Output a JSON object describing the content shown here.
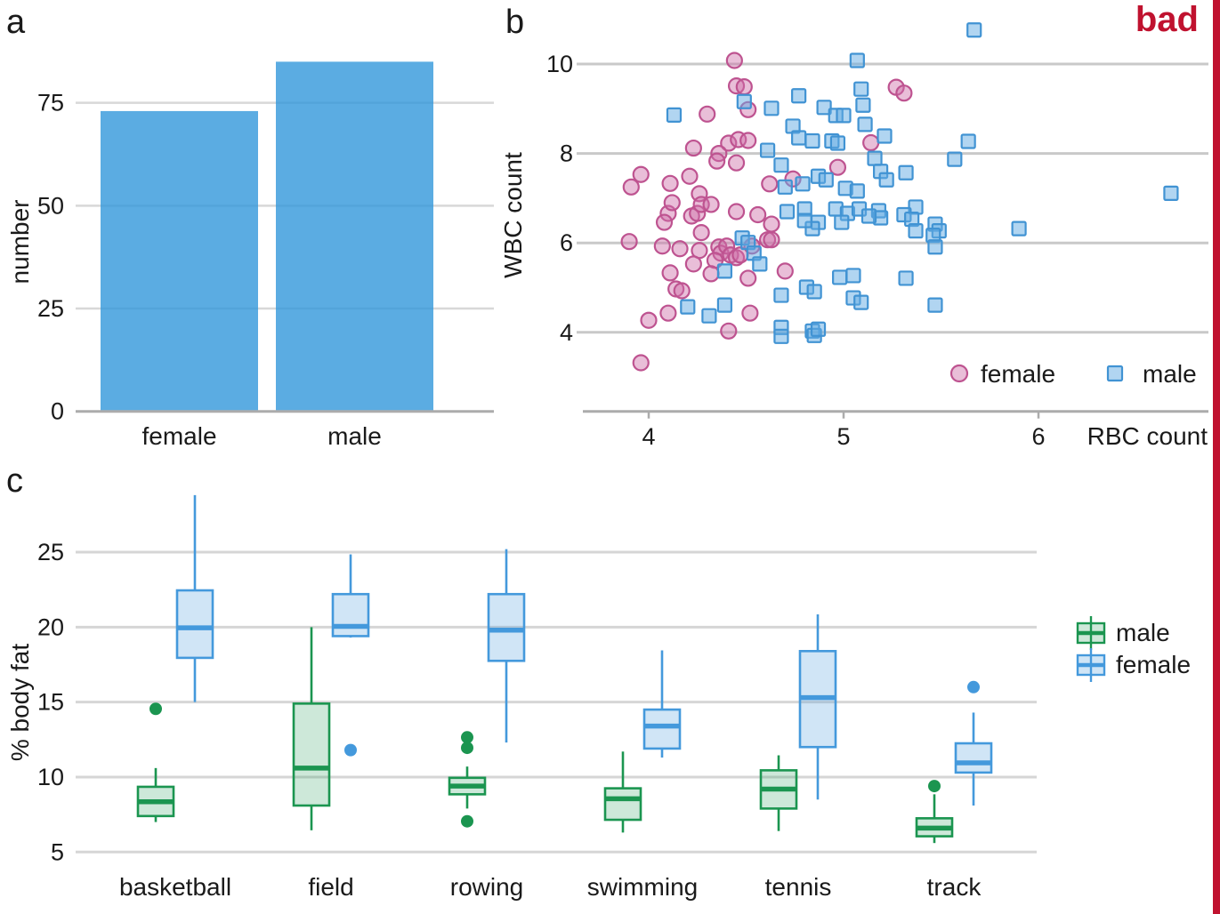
{
  "figure": {
    "panel_a_letter": "a",
    "panel_b_letter": "b",
    "panel_c_letter": "c",
    "annotation": {
      "label": "bad",
      "color": "#C0122F"
    }
  },
  "chart_data": [
    {
      "id": "a",
      "type": "bar",
      "categories": [
        "female",
        "male"
      ],
      "values": [
        73,
        85
      ],
      "ylabel": "number",
      "yticks": [
        0,
        25,
        50,
        75
      ],
      "ylim": [
        0,
        90
      ],
      "grid": true,
      "bar_color": "rgba(50,151,219,0.8)",
      "gridline_color": "#D8D8D8",
      "axis_color": "#ACACAC"
    },
    {
      "id": "b",
      "type": "scatter",
      "xlabel": "RBC count",
      "ylabel": "WBC count",
      "xticks": [
        4,
        5,
        6
      ],
      "yticks": [
        4,
        6,
        8,
        10
      ],
      "xlim": [
        3.66,
        6.9
      ],
      "ylim": [
        2.3,
        10.9
      ],
      "grid": true,
      "gridline_color": "#C9C9C9",
      "axis_color": "#ACACAC",
      "legend_position": "bottom-right-inside",
      "legend": [
        {
          "label": "female",
          "marker": "circle",
          "stroke": "#BE5390",
          "fill": "rgba(206,111,168,0.45)"
        },
        {
          "label": "male",
          "marker": "square",
          "stroke": "#4193D3",
          "fill": "rgba(100,171,228,0.5)"
        }
      ],
      "series": [
        {
          "name": "female",
          "marker": "circle",
          "stroke": "#BE5390",
          "fill": "rgba(206,111,168,0.45)",
          "points": [
            [
              4.44,
              10.08
            ],
            [
              4.45,
              9.51
            ],
            [
              4.49,
              9.49
            ],
            [
              5.27,
              9.48
            ],
            [
              5.31,
              9.35
            ],
            [
              4.51,
              8.98
            ],
            [
              4.3,
              8.88
            ],
            [
              4.23,
              8.12
            ],
            [
              4.41,
              8.23
            ],
            [
              4.46,
              8.31
            ],
            [
              4.51,
              8.29
            ],
            [
              5.14,
              8.24
            ],
            [
              4.36,
              8.0
            ],
            [
              4.35,
              7.83
            ],
            [
              4.45,
              7.79
            ],
            [
              3.96,
              7.53
            ],
            [
              3.91,
              7.25
            ],
            [
              4.11,
              7.33
            ],
            [
              4.21,
              7.49
            ],
            [
              4.62,
              7.32
            ],
            [
              4.26,
              7.1
            ],
            [
              4.74,
              7.43
            ],
            [
              4.97,
              7.69
            ],
            [
              4.1,
              6.66
            ],
            [
              4.08,
              6.46
            ],
            [
              4.22,
              6.6
            ],
            [
              4.25,
              6.66
            ],
            [
              4.12,
              6.9
            ],
            [
              4.27,
              6.86
            ],
            [
              4.32,
              6.86
            ],
            [
              4.45,
              6.7
            ],
            [
              4.56,
              6.63
            ],
            [
              4.27,
              6.23
            ],
            [
              3.9,
              6.03
            ],
            [
              4.07,
              5.93
            ],
            [
              4.16,
              5.87
            ],
            [
              4.26,
              5.83
            ],
            [
              4.36,
              5.91
            ],
            [
              4.37,
              5.77
            ],
            [
              4.4,
              5.93
            ],
            [
              4.42,
              5.73
            ],
            [
              4.45,
              5.67
            ],
            [
              4.47,
              5.73
            ],
            [
              4.53,
              5.93
            ],
            [
              4.61,
              6.07
            ],
            [
              4.63,
              6.42
            ],
            [
              4.34,
              5.61
            ],
            [
              4.32,
              5.31
            ],
            [
              4.11,
              5.33
            ],
            [
              4.14,
              4.97
            ],
            [
              4.17,
              4.93
            ],
            [
              4.23,
              5.53
            ],
            [
              4.51,
              5.21
            ],
            [
              4.63,
              6.07
            ],
            [
              4.7,
              5.37
            ],
            [
              4.1,
              4.43
            ],
            [
              4.0,
              4.27
            ],
            [
              4.52,
              4.43
            ],
            [
              4.41,
              4.03
            ],
            [
              3.96,
              3.32
            ]
          ]
        },
        {
          "name": "male",
          "marker": "square",
          "stroke": "#4193D3",
          "fill": "rgba(100,171,228,0.5)",
          "points": [
            [
              5.67,
              10.76
            ],
            [
              5.07,
              10.08
            ],
            [
              5.09,
              9.44
            ],
            [
              5.1,
              9.08
            ],
            [
              4.49,
              9.16
            ],
            [
              4.63,
              9.01
            ],
            [
              4.13,
              8.86
            ],
            [
              4.77,
              9.29
            ],
            [
              4.9,
              9.03
            ],
            [
              4.96,
              8.85
            ],
            [
              5.0,
              8.85
            ],
            [
              4.61,
              8.07
            ],
            [
              4.68,
              7.74
            ],
            [
              4.74,
              8.61
            ],
            [
              4.77,
              8.35
            ],
            [
              4.84,
              8.28
            ],
            [
              4.94,
              8.28
            ],
            [
              4.97,
              8.23
            ],
            [
              5.21,
              8.39
            ],
            [
              5.11,
              8.65
            ],
            [
              5.16,
              7.89
            ],
            [
              5.64,
              8.27
            ],
            [
              5.57,
              7.87
            ],
            [
              5.32,
              7.57
            ],
            [
              4.7,
              7.25
            ],
            [
              4.79,
              7.32
            ],
            [
              4.87,
              7.49
            ],
            [
              4.91,
              7.41
            ],
            [
              5.01,
              7.22
            ],
            [
              5.07,
              7.16
            ],
            [
              5.19,
              7.6
            ],
            [
              5.22,
              7.41
            ],
            [
              6.68,
              7.11
            ],
            [
              4.71,
              6.7
            ],
            [
              4.8,
              6.76
            ],
            [
              4.87,
              6.46
            ],
            [
              4.84,
              6.32
            ],
            [
              4.8,
              6.5
            ],
            [
              4.96,
              6.76
            ],
            [
              5.02,
              6.66
            ],
            [
              4.99,
              6.46
            ],
            [
              5.08,
              6.76
            ],
            [
              5.18,
              6.72
            ],
            [
              5.19,
              6.56
            ],
            [
              5.13,
              6.6
            ],
            [
              4.48,
              6.11
            ],
            [
              4.51,
              6.01
            ],
            [
              4.54,
              5.77
            ],
            [
              4.57,
              5.53
            ],
            [
              4.39,
              5.37
            ],
            [
              4.68,
              4.83
            ],
            [
              4.81,
              5.01
            ],
            [
              4.85,
              4.91
            ],
            [
              5.05,
              5.27
            ],
            [
              4.98,
              5.23
            ],
            [
              5.05,
              4.77
            ],
            [
              5.09,
              4.67
            ],
            [
              4.2,
              4.57
            ],
            [
              4.31,
              4.37
            ],
            [
              4.39,
              4.61
            ],
            [
              4.68,
              4.11
            ],
            [
              4.68,
              3.91
            ],
            [
              4.84,
              4.03
            ],
            [
              4.85,
              3.93
            ],
            [
              4.87,
              4.07
            ],
            [
              5.37,
              6.8
            ],
            [
              5.31,
              6.63
            ],
            [
              5.35,
              6.53
            ],
            [
              5.37,
              6.27
            ],
            [
              5.47,
              6.42
            ],
            [
              5.49,
              6.27
            ],
            [
              5.46,
              6.17
            ],
            [
              5.47,
              5.91
            ],
            [
              5.9,
              6.32
            ],
            [
              5.32,
              5.21
            ],
            [
              5.47,
              4.61
            ]
          ]
        }
      ]
    },
    {
      "id": "c",
      "type": "boxplot",
      "categories": [
        "basketball",
        "field",
        "rowing",
        "swimming",
        "tennis",
        "track"
      ],
      "ylabel": "% body fat",
      "yticks": [
        5,
        10,
        15,
        20,
        25
      ],
      "ylim": [
        4,
        29.5
      ],
      "grid": true,
      "gridline_color": "#D6D6D6",
      "legend": [
        {
          "label": "male",
          "stroke": "#1B9550",
          "fill": "rgba(27,149,80,0.22)"
        },
        {
          "label": "female",
          "stroke": "#4499DC",
          "fill": "rgba(68,153,220,0.25)"
        }
      ],
      "series": [
        {
          "name": "male",
          "stroke": "#1B9550",
          "fill": "rgba(27,149,80,0.22)",
          "boxes": [
            {
              "category": "basketball",
              "whisker_low": 7.0,
              "q1": 7.4,
              "median": 8.35,
              "q3": 9.35,
              "whisker_high": 10.6,
              "outliers": [
                14.55
              ]
            },
            {
              "category": "field",
              "whisker_low": 6.45,
              "q1": 8.1,
              "median": 10.6,
              "q3": 14.9,
              "whisker_high": 20.0,
              "outliers": []
            },
            {
              "category": "rowing",
              "whisker_low": 7.9,
              "q1": 8.85,
              "median": 9.4,
              "q3": 9.95,
              "whisker_high": 10.7,
              "outliers": [
                12.65,
                11.95,
                7.05
              ]
            },
            {
              "category": "swimming",
              "whisker_low": 6.3,
              "q1": 7.15,
              "median": 8.55,
              "q3": 9.25,
              "whisker_high": 11.7,
              "outliers": []
            },
            {
              "category": "tennis",
              "whisker_low": 6.4,
              "q1": 7.9,
              "median": 9.2,
              "q3": 10.45,
              "whisker_high": 11.45,
              "outliers": []
            },
            {
              "category": "track",
              "whisker_low": 5.6,
              "q1": 6.05,
              "median": 6.6,
              "q3": 7.25,
              "whisker_high": 8.85,
              "outliers": [
                9.4
              ]
            }
          ]
        },
        {
          "name": "female",
          "stroke": "#4499DC",
          "fill": "rgba(68,153,220,0.25)",
          "boxes": [
            {
              "category": "basketball",
              "whisker_low": 15.0,
              "q1": 17.95,
              "median": 19.95,
              "q3": 22.45,
              "whisker_high": 28.8,
              "outliers": []
            },
            {
              "category": "field",
              "whisker_low": 19.3,
              "q1": 19.4,
              "median": 20.05,
              "q3": 22.2,
              "whisker_high": 24.85,
              "outliers": [
                11.8
              ]
            },
            {
              "category": "rowing",
              "whisker_low": 12.3,
              "q1": 17.75,
              "median": 19.8,
              "q3": 22.2,
              "whisker_high": 25.2,
              "outliers": []
            },
            {
              "category": "swimming",
              "whisker_low": 11.3,
              "q1": 11.9,
              "median": 13.4,
              "q3": 14.5,
              "whisker_high": 18.45,
              "outliers": []
            },
            {
              "category": "tennis",
              "whisker_low": 8.5,
              "q1": 12.0,
              "median": 15.3,
              "q3": 18.4,
              "whisker_high": 20.85,
              "outliers": []
            },
            {
              "category": "track",
              "whisker_low": 8.1,
              "q1": 10.3,
              "median": 10.95,
              "q3": 12.25,
              "whisker_high": 14.3,
              "outliers": [
                16.0
              ]
            }
          ]
        }
      ]
    }
  ]
}
